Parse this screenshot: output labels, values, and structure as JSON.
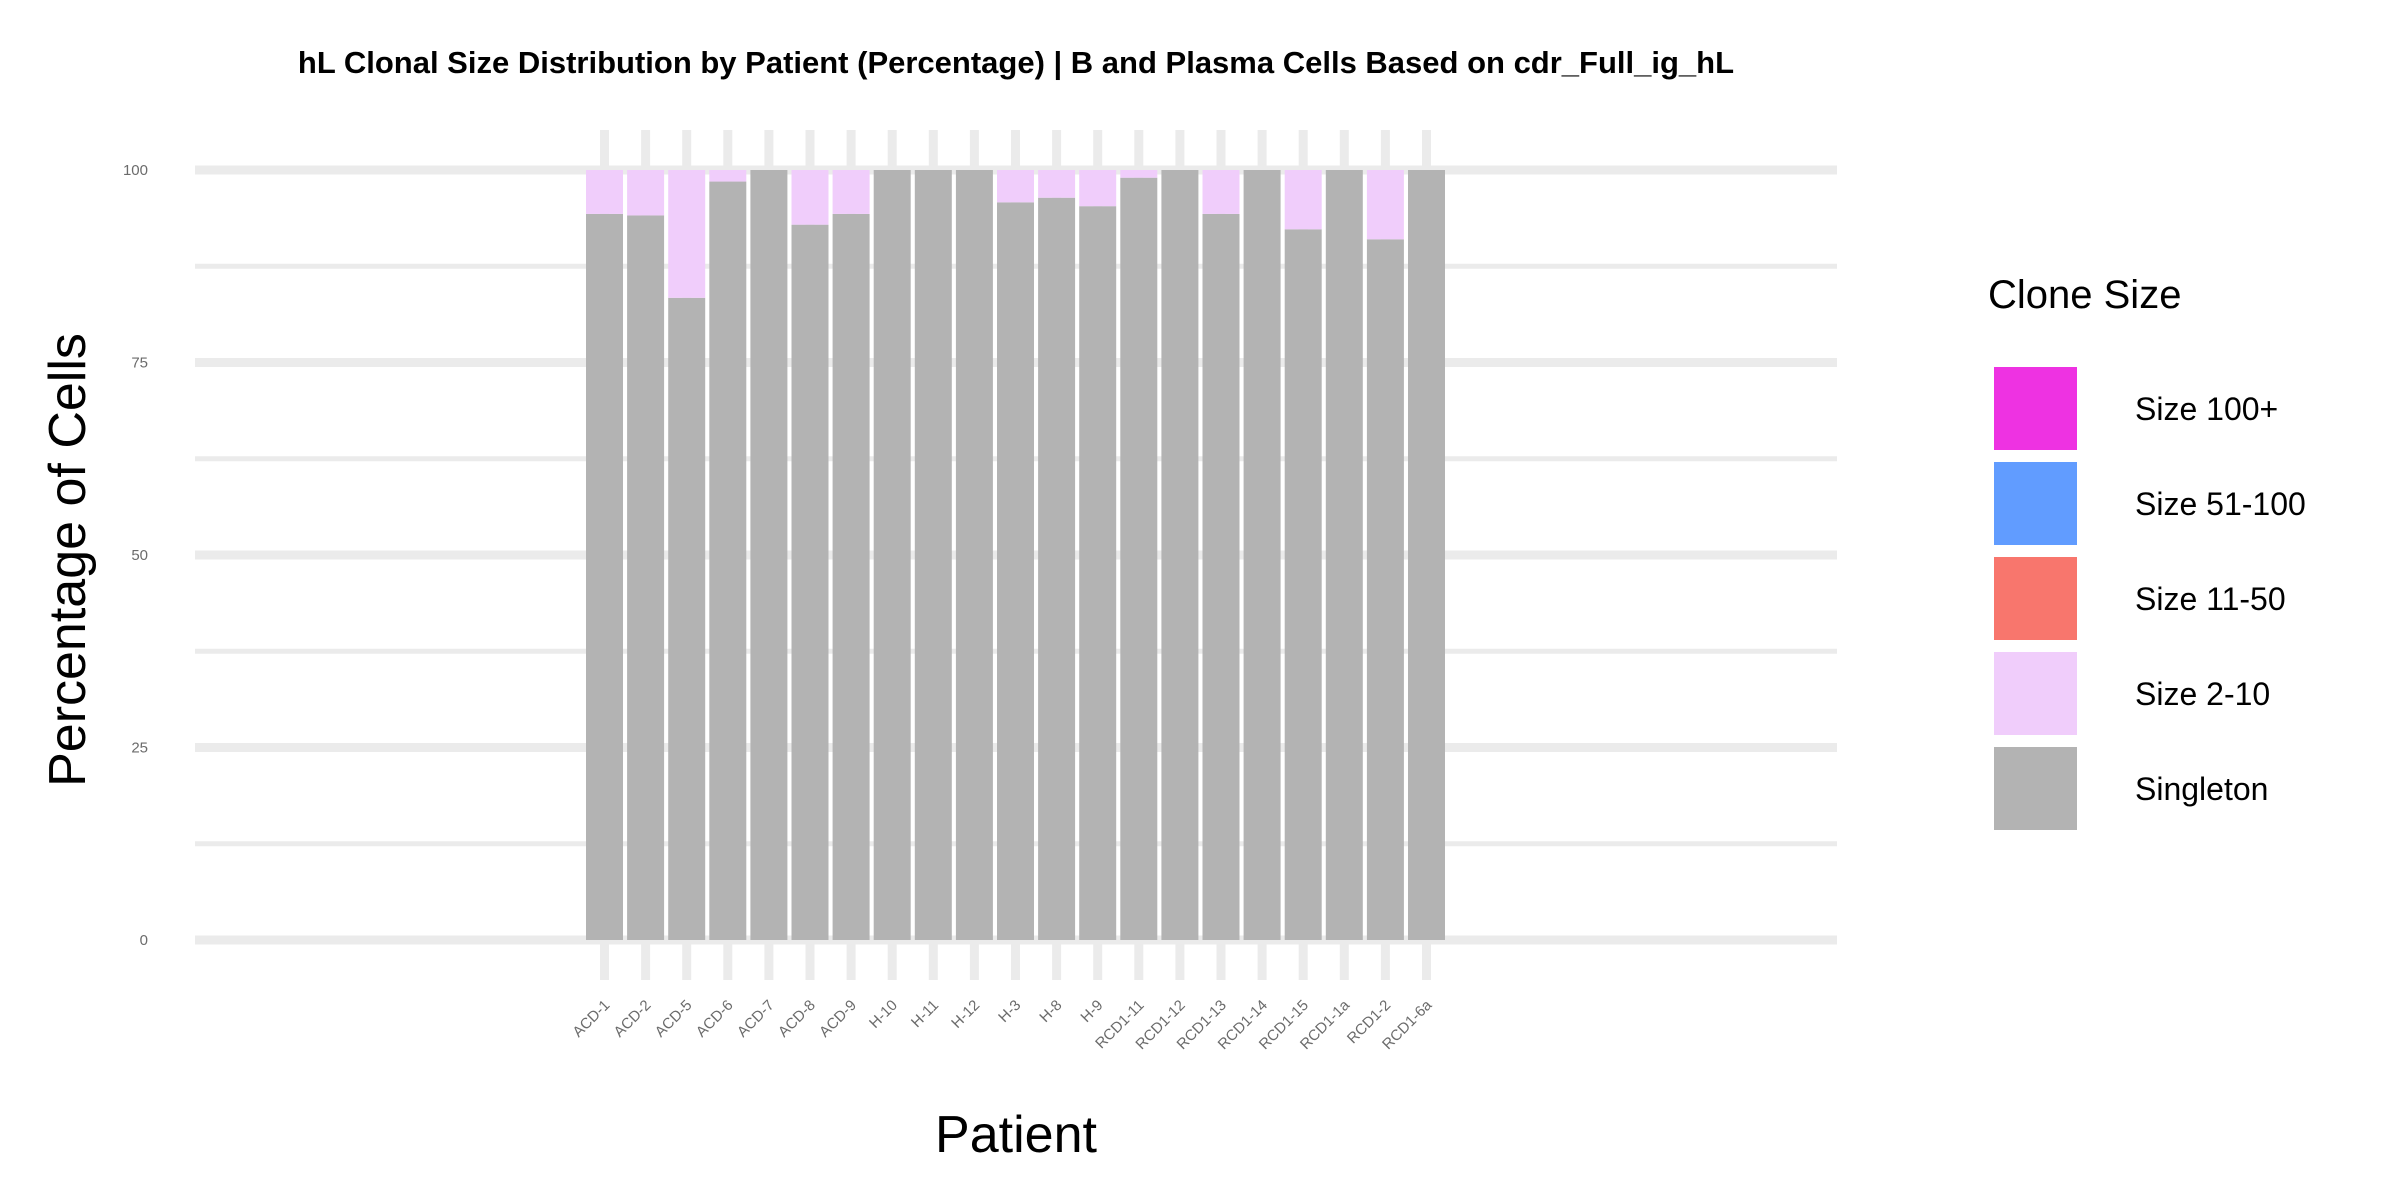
{
  "chart_data": {
    "type": "bar",
    "stacked": true,
    "title": "hL Clonal Size Distribution by Patient (Percentage) | B and Plasma Cells Based on cdr_Full_ig_hL",
    "xlabel": "Patient",
    "ylabel": "Percentage of Cells",
    "ylim": [
      0,
      100
    ],
    "yticks": [
      0,
      25,
      50,
      75,
      100
    ],
    "grid": true,
    "legend_position": "right",
    "legend_title": "Clone Size",
    "categories": [
      "ACD-1",
      "ACD-2",
      "ACD-5",
      "ACD-6",
      "ACD-7",
      "ACD-8",
      "ACD-9",
      "H-10",
      "H-11",
      "H-12",
      "H-3",
      "H-8",
      "H-9",
      "RCD1-11",
      "RCD1-12",
      "RCD1-13",
      "RCD1-14",
      "RCD1-15",
      "RCD1-1a",
      "RCD1-2",
      "RCD1-6a"
    ],
    "series": [
      {
        "name": "Singleton",
        "color": "#b3b3b3",
        "values": [
          94.3,
          94.1,
          83.4,
          98.5,
          100,
          92.9,
          94.3,
          100,
          100,
          100,
          95.8,
          96.4,
          95.3,
          99.0,
          100,
          94.3,
          100,
          92.3,
          100,
          91.0,
          100
        ]
      },
      {
        "name": "Size 2-10",
        "color": "#f0cdfb",
        "values": [
          5.7,
          5.9,
          16.6,
          1.5,
          0,
          7.1,
          5.7,
          0,
          0,
          0,
          4.2,
          3.6,
          4.7,
          1.0,
          0,
          5.7,
          0,
          7.7,
          0,
          9.0,
          0
        ]
      },
      {
        "name": "Size 11-50",
        "color": "#f8766d",
        "values": [
          0,
          0,
          0,
          0,
          0,
          0,
          0,
          0,
          0,
          0,
          0,
          0,
          0,
          0,
          0,
          0,
          0,
          0,
          0,
          0,
          0
        ]
      },
      {
        "name": "Size 51-100",
        "color": "#619cff",
        "values": [
          0,
          0,
          0,
          0,
          0,
          0,
          0,
          0,
          0,
          0,
          0,
          0,
          0,
          0,
          0,
          0,
          0,
          0,
          0,
          0,
          0
        ]
      },
      {
        "name": "Size 100+",
        "color": "#ee32e2",
        "values": [
          0,
          0,
          0,
          0,
          0,
          0,
          0,
          0,
          0,
          0,
          0,
          0,
          0,
          0,
          0,
          0,
          0,
          0,
          0,
          0,
          0
        ]
      }
    ],
    "legend_order": [
      "Size 100+",
      "Size 51-100",
      "Size 11-50",
      "Size 2-10",
      "Singleton"
    ]
  }
}
